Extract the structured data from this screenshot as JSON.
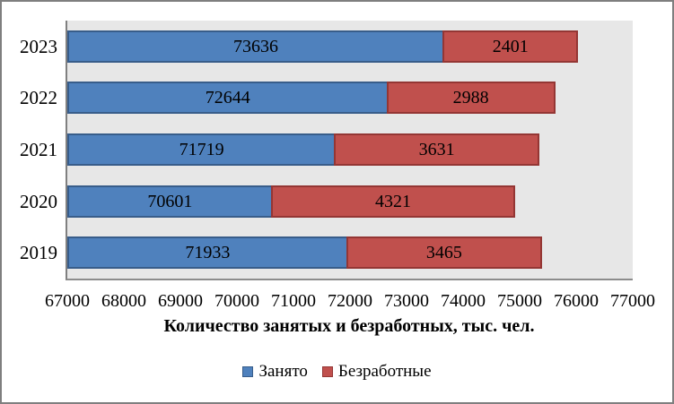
{
  "figure": {
    "frame_border_color": "#7F7F7F",
    "background_color": "#FFFFFF"
  },
  "chart_data": {
    "type": "bar",
    "orientation": "horizontal",
    "stacked": true,
    "grid": false,
    "categories": [
      "2023",
      "2022",
      "2021",
      "2020",
      "2019"
    ],
    "series": [
      {
        "name": "Занято",
        "values": [
          73636,
          72644,
          71719,
          70601,
          71933
        ],
        "color": "#4F81BD",
        "border_color": "#385D8A"
      },
      {
        "name": "Безработные",
        "values": [
          2401,
          2988,
          3631,
          4321,
          3465
        ],
        "color": "#C0504D",
        "border_color": "#943634"
      }
    ],
    "xlabel": "Количество занятых и безработных, тыс. чел.",
    "xlim": [
      67000,
      77000
    ],
    "x_ticks": [
      67000,
      68000,
      69000,
      70000,
      71000,
      72000,
      73000,
      74000,
      75000,
      76000,
      77000
    ],
    "data_labels": "inside-center",
    "legend_position": "bottom",
    "plot_background": "#E7E7E7",
    "axis_line_color": "#808080",
    "label_text_color": "#000000"
  }
}
